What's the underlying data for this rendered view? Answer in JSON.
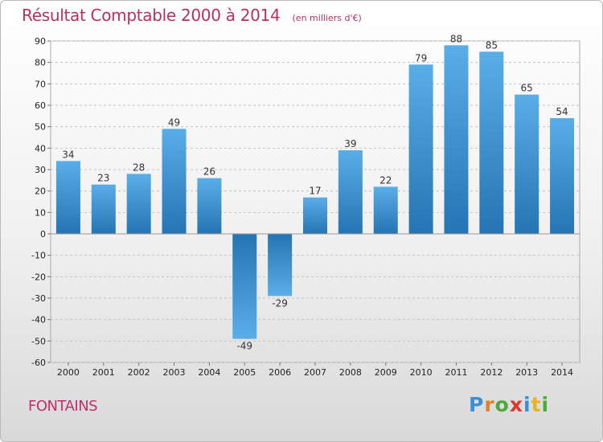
{
  "chart_data": {
    "type": "bar",
    "title": "Résultat Comptable 2000 à 2014",
    "subtitle": "(en milliers d'€)",
    "categories": [
      "2000",
      "2001",
      "2002",
      "2003",
      "2004",
      "2005",
      "2006",
      "2007",
      "2008",
      "2009",
      "2010",
      "2011",
      "2012",
      "2013",
      "2014"
    ],
    "values": [
      34,
      23,
      28,
      49,
      26,
      -49,
      -29,
      17,
      39,
      22,
      79,
      88,
      85,
      65,
      54
    ],
    "ylim": [
      -60,
      90
    ],
    "yticks": [
      90,
      80,
      70,
      60,
      50,
      40,
      30,
      20,
      10,
      0,
      -10,
      -20,
      -30,
      -40,
      -50,
      -60
    ],
    "grid": true,
    "xlabel": "",
    "ylabel": "",
    "colors": {
      "bar_light": "#5aaee8",
      "bar_dark": "#2574b3"
    }
  },
  "footer": {
    "place": "FONTAINS",
    "logo_letters": [
      {
        "ch": "P",
        "color": "#3b8fd6"
      },
      {
        "ch": "r",
        "color": "#e0802a"
      },
      {
        "ch": "o",
        "color": "#4caa3a"
      },
      {
        "ch": "x",
        "color": "#d93a2b"
      },
      {
        "ch": "i",
        "color": "#3b8fd6"
      },
      {
        "ch": "t",
        "color": "#e7b425"
      },
      {
        "ch": "i",
        "color": "#4caa3a"
      }
    ]
  }
}
